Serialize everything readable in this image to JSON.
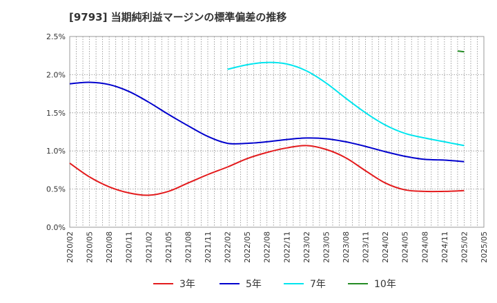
{
  "chart_data": {
    "type": "line",
    "title": "[9793]  当期純利益マージンの標準偏差の推移",
    "xlabel": "",
    "ylabel": "",
    "ylim": [
      0,
      2.5
    ],
    "y_ticks": [
      "0.0%",
      "0.5%",
      "1.0%",
      "1.5%",
      "2.0%",
      "2.5%"
    ],
    "x": [
      "2020/02",
      "2020/05",
      "2020/08",
      "2020/11",
      "2021/02",
      "2021/05",
      "2021/08",
      "2021/11",
      "2022/02",
      "2022/05",
      "2022/08",
      "2022/11",
      "2023/02",
      "2023/05",
      "2023/08",
      "2023/11",
      "2024/02",
      "2024/05",
      "2024/08",
      "2024/11",
      "2025/02",
      "2025/05"
    ],
    "grid": true,
    "legend_position": "bottom",
    "series": [
      {
        "name": "3年",
        "color": "#e31a1c",
        "values": [
          0.84,
          0.66,
          0.53,
          0.45,
          0.42,
          0.47,
          0.58,
          0.69,
          0.79,
          0.9,
          0.98,
          1.04,
          1.07,
          1.02,
          0.91,
          0.74,
          0.58,
          0.49,
          0.47,
          0.47,
          0.48,
          null
        ]
      },
      {
        "name": "5年",
        "color": "#0000cd",
        "values": [
          1.88,
          1.9,
          1.87,
          1.78,
          1.64,
          1.48,
          1.33,
          1.19,
          1.1,
          1.1,
          1.12,
          1.15,
          1.17,
          1.16,
          1.12,
          1.06,
          0.99,
          0.93,
          0.89,
          0.88,
          0.86,
          null
        ]
      },
      {
        "name": "7年",
        "color": "#00e5ee",
        "values": [
          null,
          null,
          null,
          null,
          null,
          null,
          null,
          null,
          2.07,
          2.13,
          2.16,
          2.14,
          2.05,
          1.89,
          1.69,
          1.5,
          1.34,
          1.23,
          1.17,
          1.12,
          1.07,
          null
        ]
      },
      {
        "name": "10年",
        "color": "#228b22",
        "values": [
          null,
          null,
          null,
          null,
          null,
          null,
          null,
          null,
          null,
          null,
          null,
          null,
          null,
          null,
          null,
          null,
          null,
          null,
          null,
          null,
          2.3,
          null
        ],
        "segment_start": 2.31
      }
    ]
  }
}
